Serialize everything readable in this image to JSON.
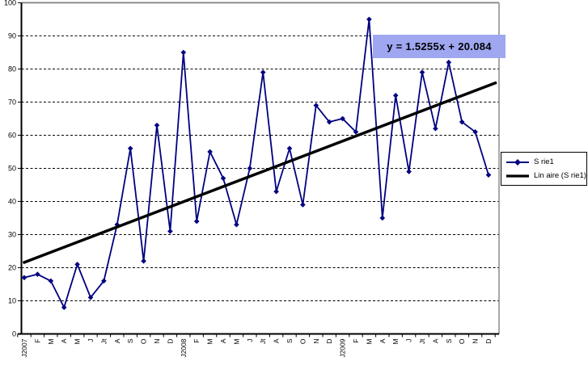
{
  "chart_data": {
    "type": "line",
    "title": "",
    "categories": [
      "J2007",
      "F",
      "M",
      "A",
      "M",
      "J",
      "Jt",
      "A",
      "S",
      "O",
      "N",
      "D",
      "J2008",
      "F",
      "M",
      "A",
      "M",
      "J",
      "Jt",
      "A",
      "S",
      "O",
      "N",
      "D",
      "J2009",
      "F",
      "M",
      "A",
      "M",
      "J",
      "Jt",
      "A",
      "S",
      "O",
      "N",
      "D"
    ],
    "series": [
      {
        "name": "S rie1",
        "values": [
          17,
          18,
          16,
          8,
          21,
          11,
          16,
          33,
          56,
          22,
          63,
          31,
          85,
          34,
          55,
          47,
          33,
          50,
          79,
          43,
          56,
          39,
          69,
          64,
          65,
          61,
          95,
          35,
          72,
          49,
          79,
          62,
          82,
          64,
          61,
          48
        ],
        "color": "#000080",
        "marker": "diamond"
      }
    ],
    "trendline": {
      "legend_label": "Lin aire (S rie1)",
      "equation_label": "y = 1.5255x + 20.084",
      "slope": 1.5255,
      "intercept": 20.084,
      "color": "#000000"
    },
    "y_axis": {
      "min": 0,
      "max": 100,
      "step": 10
    },
    "x_axis": {
      "tick_labels_rotated": true
    },
    "legend": {
      "position": "right"
    },
    "grid": "horizontal-dashed",
    "ylim": [
      0,
      100
    ],
    "colors": {
      "series": "#000080",
      "trendline": "#000000",
      "equation_background": "#9fa7f1",
      "plot_border": "#8c8c8c",
      "gridline": "#000000"
    }
  }
}
